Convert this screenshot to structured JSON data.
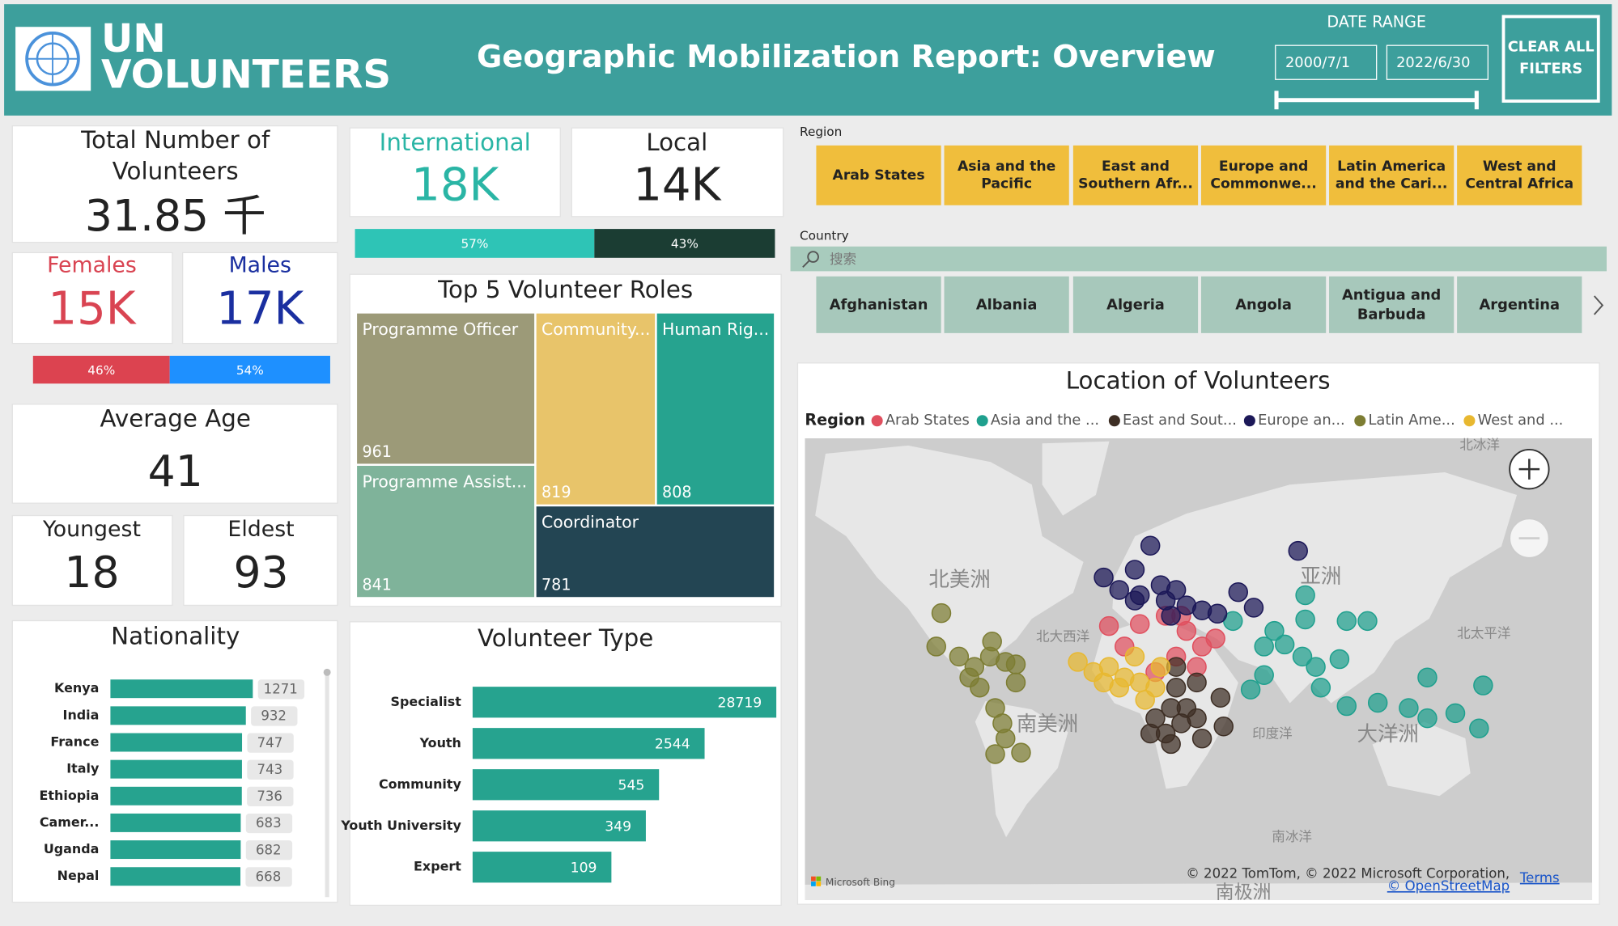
{
  "header": {
    "logo_lines": [
      "UN",
      "VOLUNTEERS"
    ],
    "title": "Geographic Mobilization Report: Overview",
    "date_range_label": "DATE RANGE",
    "date_start": "2000/7/1",
    "date_end": "2022/6/30",
    "clear_button": [
      "CLEAR ALL",
      "FILTERS"
    ]
  },
  "kpis": {
    "total": {
      "label": [
        "Total Number of",
        "Volunteers"
      ],
      "value": "31.85 千"
    },
    "international": {
      "label": "International",
      "value": "18K"
    },
    "local": {
      "label": "Local",
      "value": "14K"
    },
    "females": {
      "label": "Females",
      "value": "15K"
    },
    "males": {
      "label": "Males",
      "value": "17K"
    },
    "average_age": {
      "label": "Average Age",
      "value": 41
    },
    "youngest": {
      "label": "Youngest",
      "value": 18
    },
    "eldest": {
      "label": "Eldest",
      "value": 93
    }
  },
  "filters": {
    "region_label": "Region",
    "regions": [
      [
        "Arab States"
      ],
      [
        "Asia and the",
        "Pacific"
      ],
      [
        "East and",
        "Southern Afr..."
      ],
      [
        "Europe and",
        "Commonwe..."
      ],
      [
        "Latin America",
        "and the Cari..."
      ],
      [
        "West and",
        "Central Africa"
      ]
    ],
    "country_label": "Country",
    "search_placeholder": "搜索",
    "countries": [
      [
        "Afghanistan"
      ],
      [
        "Albania"
      ],
      [
        "Algeria"
      ],
      [
        "Angola"
      ],
      [
        "Antigua and",
        "Barbuda"
      ],
      [
        "Argentina"
      ]
    ]
  },
  "chart_data": [
    {
      "type": "stacked_bar",
      "values": [
        57,
        43
      ],
      "value_labels": [
        "57%",
        "43%"
      ],
      "colors": [
        "#2ec4b6",
        "#1b3d33"
      ],
      "xlim": [
        0,
        100
      ]
    },
    {
      "type": "stacked_bar",
      "values": [
        46,
        54
      ],
      "value_labels": [
        "46%",
        "54%"
      ],
      "colors": [
        "#dc4350",
        "#1e90ff"
      ],
      "xlim": [
        0,
        100
      ]
    },
    {
      "type": "treemap",
      "title": "Top 5 Volunteer Roles",
      "categories": [
        "Programme Officer",
        "Community...",
        "Human Rig...",
        "Programme Assist...",
        "Coordinator"
      ],
      "values": [
        961,
        819,
        808,
        841,
        781
      ],
      "colors": [
        "#9c9a78",
        "#e8c46a",
        "#26a38f",
        "#7fb39a",
        "#234553"
      ]
    },
    {
      "type": "bar",
      "orientation": "horizontal",
      "title": "Nationality",
      "categories": [
        "Kenya",
        "India",
        "France",
        "Italy",
        "Ethiopia",
        "Camer...",
        "Uganda",
        "Nepal"
      ],
      "values": [
        1271,
        932,
        747,
        743,
        736,
        683,
        682,
        668
      ],
      "color": "#26a38f",
      "xlim": [
        -5663,
        1372
      ]
    },
    {
      "type": "bar",
      "orientation": "horizontal",
      "title": "Volunteer Type",
      "categories": [
        "Specialist",
        "Youth",
        "Community",
        "Youth University",
        "Expert"
      ],
      "values": [
        28719,
        2544,
        545,
        349,
        109
      ],
      "color": "#26a38f",
      "xlim": [
        1,
        35000
      ],
      "log_scale": true
    },
    {
      "type": "scatter",
      "title": "Location of Volunteers",
      "legend_title": "Region",
      "xlim": [
        -175,
        230
      ],
      "ylim": [
        -70,
        80
      ],
      "series": [
        {
          "name": "Arab States",
          "color": "#e0505f",
          "x": [
            -18.6,
            -2.7,
            10.6,
            21.3,
            29.3,
            16,
            5.3,
            26.6,
            36.2,
            -10.6,
            18.6
          ],
          "y": [
            39,
            39.8,
            43,
            37,
            30.3,
            25.7,
            18.3,
            20.8,
            33.8,
            30.3,
            43
          ]
        },
        {
          "name": "Asia and the ...",
          "color": "#1fa08e",
          "x": [
            82.4,
            82.4,
            45.2,
            61.2,
            71.8,
            80.9,
            87.8,
            100,
            103.7,
            114.4,
            90.4,
            103.7,
            119.7,
            135.6,
            145.2,
            145.2,
            159.6,
            171.8,
            173.9,
            54.3,
            61.2,
            66.5
          ],
          "y": [
            50.3,
            41.6,
            41,
            30.3,
            31.2,
            25.7,
            20.8,
            24.5,
            41,
            41,
            10.5,
            1,
            2.7,
            0,
            15.6,
            -5.3,
            -2.7,
            -10.5,
            11.6,
            9.5,
            16.8,
            37
          ]
        },
        {
          "name": "East and Sout...",
          "color": "#3d2e24",
          "x": [
            16,
            13.3,
            21.3,
            26.6,
            5.3,
            10.6,
            18.6,
            26.6,
            2.7,
            13.3,
            38.8,
            40.4,
            29.3,
            16
          ],
          "y": [
            10.5,
            0,
            0,
            13.1,
            -5.3,
            -13.1,
            -7.9,
            -5.3,
            -13.1,
            -18.3,
            5.3,
            -9.5,
            -15.6,
            20.8
          ]
        },
        {
          "name": "Europe an...",
          "color": "#1c1858",
          "x": [
            2.7,
            -21.3,
            -13.3,
            -5.3,
            -2.7,
            8,
            16,
            21.3,
            13.3,
            29.3,
            47.9,
            55.9,
            78.7,
            -5.3,
            10.6,
            37.2
          ],
          "y": [
            64,
            55.8,
            52,
            58,
            50.3,
            53.5,
            52,
            46.8,
            43,
            45,
            51.3,
            46,
            62.8,
            48.5,
            48.5,
            43.8
          ]
        },
        {
          "name": "Latin Ame...",
          "color": "#7d7d33",
          "x": [
            -104.8,
            -107.4,
            -95.7,
            -87.8,
            -79.8,
            -71.8,
            -66.5,
            -85.1,
            -77.1,
            -73.4,
            -71.8,
            -77.1,
            -63.8,
            -90.4,
            -66.5,
            -78.7
          ],
          "y": [
            44,
            30.3,
            25.7,
            20.8,
            25.7,
            23.2,
            13.1,
            10.5,
            0,
            -7.9,
            -15.6,
            -23.2,
            -22.5,
            15.6,
            22,
            32.5
          ]
        },
        {
          "name": "West and ...",
          "color": "#e8b830",
          "x": [
            -34.6,
            -26.6,
            -18.6,
            -10.6,
            -5.3,
            -2.7,
            5.3,
            -13.3,
            -21.3,
            0,
            8
          ],
          "y": [
            23.2,
            18.3,
            20.8,
            15.6,
            25.7,
            13.1,
            10.5,
            10.5,
            13.1,
            4.2,
            20.8
          ]
        }
      ],
      "map_labels": [
        "北美洲",
        "南美洲",
        "亚洲",
        "大洋洲",
        "北大西洋",
        "北太平洋",
        "印度洋",
        "南冰洋",
        "北冰洋",
        "南极洲"
      ],
      "attribution": [
        "© 2022 TomTom, © 2022 Microsoft Corporation,",
        "© OpenStreetMap",
        "Terms",
        "Microsoft Bing"
      ]
    }
  ]
}
